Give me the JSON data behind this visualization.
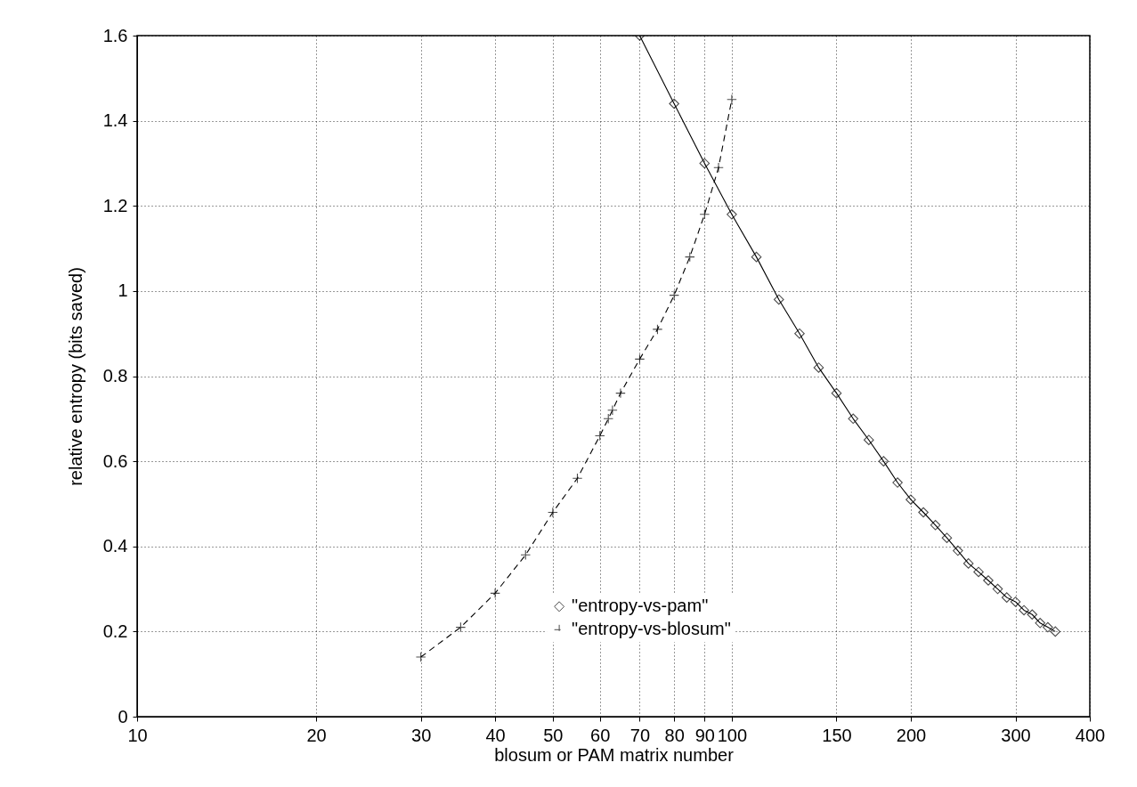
{
  "chart_data": {
    "type": "line",
    "xlabel": "blosum or PAM matrix number",
    "ylabel": "relative entropy (bits saved)",
    "log": "x",
    "xlim": [
      10,
      400
    ],
    "xticks": [
      10,
      20,
      30,
      40,
      50,
      60,
      70,
      80,
      90,
      100,
      150,
      200,
      300,
      400
    ],
    "ylim": [
      0,
      1.6
    ],
    "yticks": [
      0,
      0.2,
      0.4,
      0.6,
      0.8,
      1,
      1.2,
      1.4,
      1.6
    ],
    "grid": true,
    "legend": "bottom",
    "series": [
      {
        "name": "\"entropy-vs-pam\"",
        "color": "#000000",
        "marker": "diamond",
        "line_style": "solid",
        "x": [
          70,
          80,
          90,
          100,
          110,
          120,
          130,
          140,
          150,
          160,
          170,
          180,
          190,
          200,
          210,
          220,
          230,
          240,
          250,
          260,
          270,
          280,
          290,
          300,
          310,
          320,
          330,
          340,
          350
        ],
        "values": [
          1.6,
          1.44,
          1.3,
          1.18,
          1.08,
          0.98,
          0.9,
          0.82,
          0.76,
          0.7,
          0.65,
          0.6,
          0.55,
          0.51,
          0.48,
          0.45,
          0.42,
          0.39,
          0.36,
          0.34,
          0.32,
          0.3,
          0.28,
          0.27,
          0.25,
          0.24,
          0.22,
          0.21,
          0.2
        ]
      },
      {
        "name": "\"entropy-vs-blosum\"",
        "color": "#000000",
        "marker": "cross",
        "line_style": "dashed",
        "x": [
          30,
          35,
          40,
          45,
          50,
          55,
          60,
          62,
          63,
          65,
          70,
          75,
          80,
          85,
          90,
          95,
          100
        ],
        "values": [
          0.14,
          0.21,
          0.29,
          0.38,
          0.48,
          0.56,
          0.66,
          0.7,
          0.72,
          0.76,
          0.84,
          0.91,
          0.99,
          1.08,
          1.18,
          1.29,
          1.45
        ]
      }
    ]
  }
}
